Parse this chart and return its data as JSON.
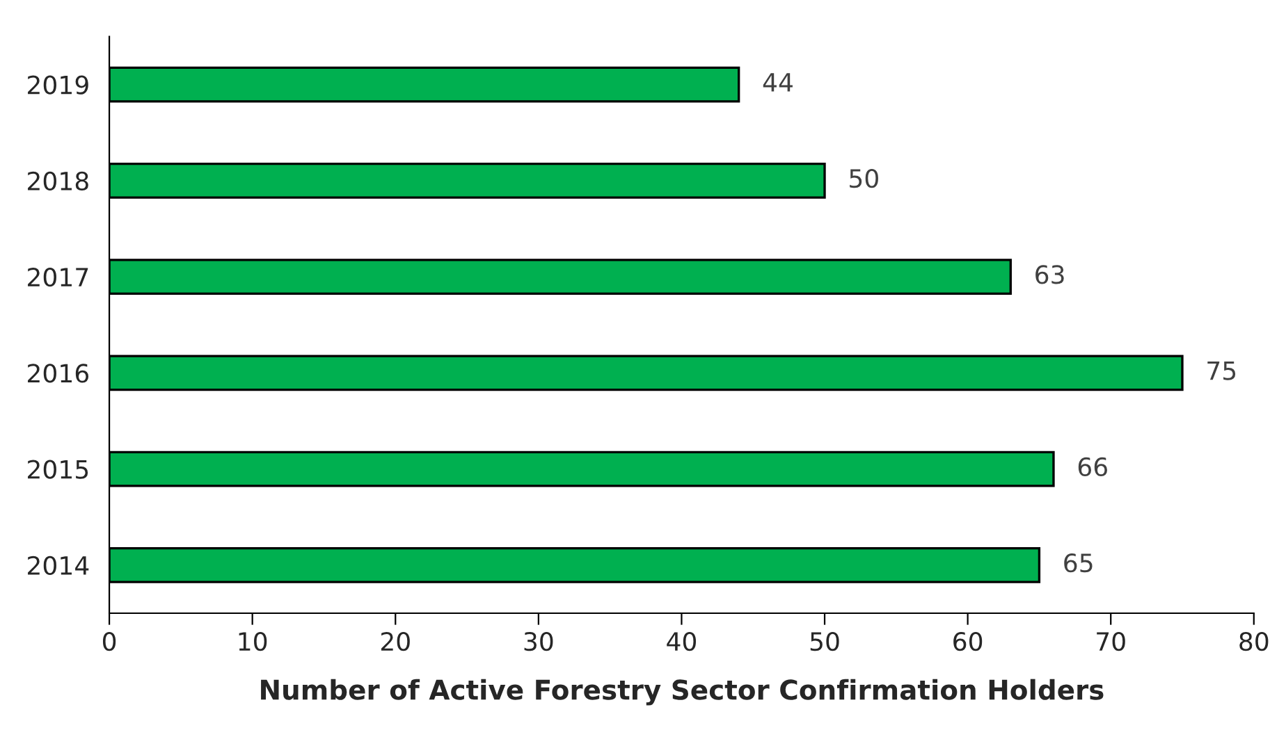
{
  "chart_data": {
    "type": "bar",
    "orientation": "horizontal",
    "xlabel": "Number of Active Forestry Sector Confirmation Holders",
    "categories": [
      "2019",
      "2018",
      "2017",
      "2016",
      "2015",
      "2014"
    ],
    "values": [
      44,
      50,
      63,
      75,
      66,
      65
    ],
    "color": "#00b050",
    "xlim": [
      0,
      80
    ],
    "xticks": [
      0,
      10,
      20,
      30,
      40,
      50,
      60,
      70,
      80
    ],
    "data_labels": true,
    "grid": false,
    "legend": false
  }
}
